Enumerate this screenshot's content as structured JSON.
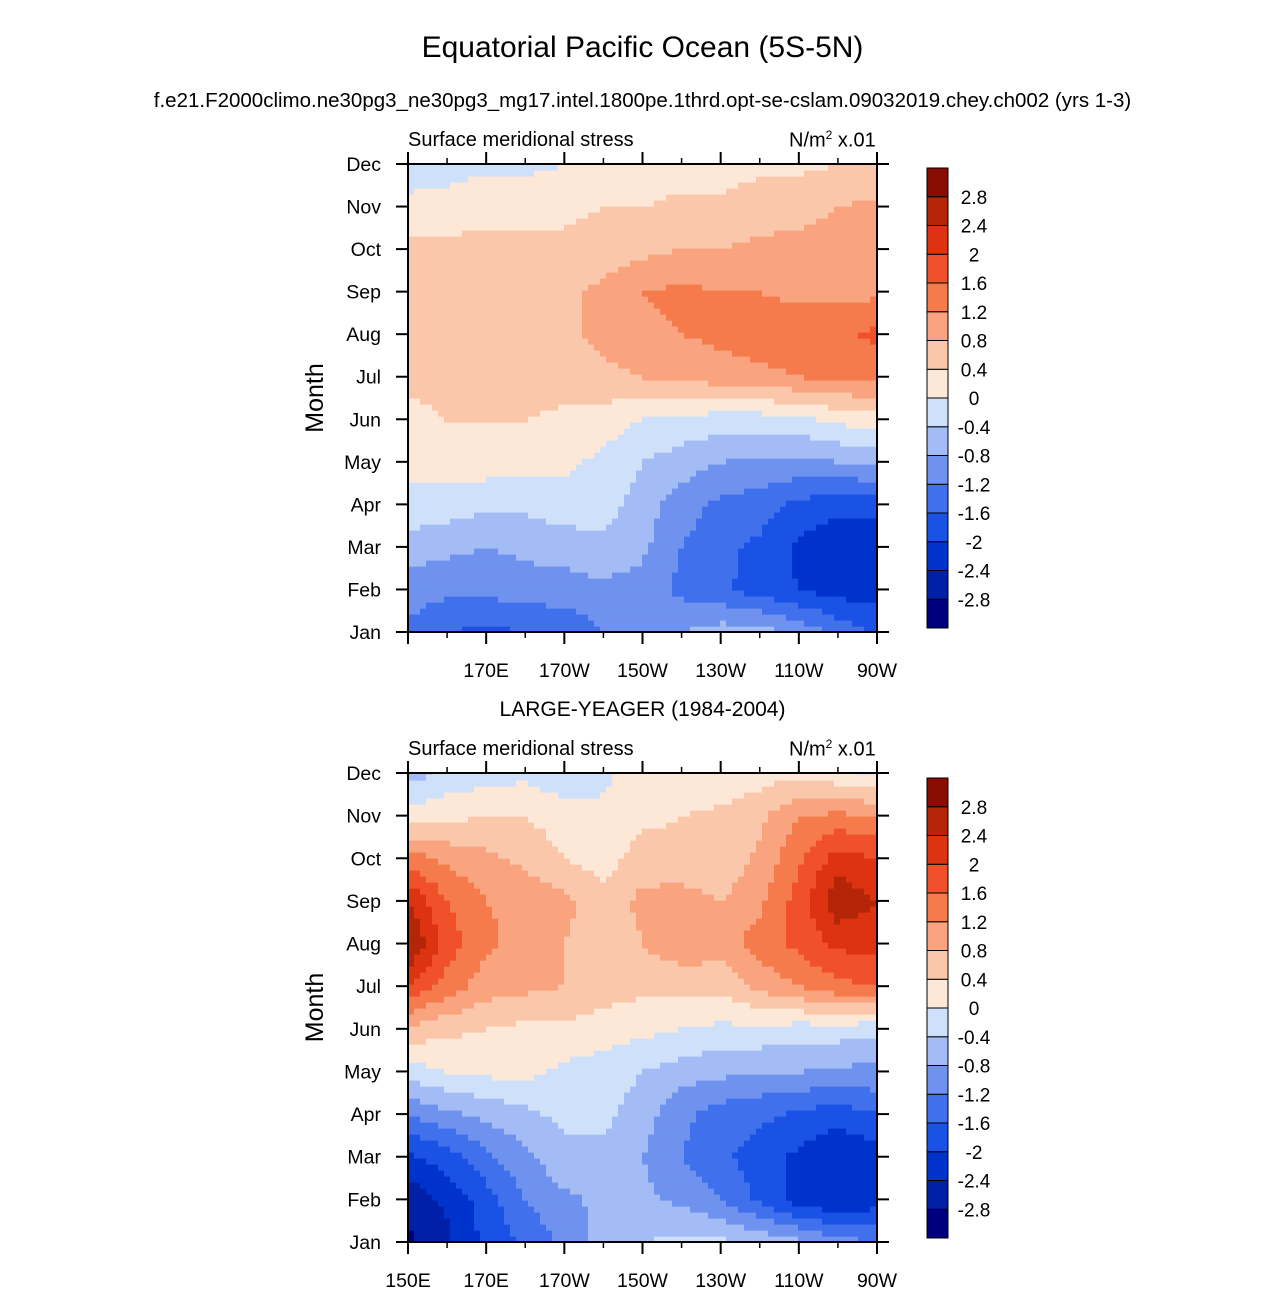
{
  "title": "Equatorial Pacific Ocean (5S-5N)",
  "subtitle": "f.e21.F2000climo.ne30pg3_ne30pg3_mg17.intel.1800pe.1thrd.opt-se-cslam.09032019.chey.ch002 (yrs 1-3)",
  "between_title": "LARGE-YEAGER (1984-2004)",
  "colors": [
    "#00007f",
    "#0020a8",
    "#0033cc",
    "#1a52e6",
    "#4070ec",
    "#6f92ef",
    "#a3bcf5",
    "#cfe0fb",
    "#fde8d8",
    "#fbc7ab",
    "#f9a47f",
    "#f57a4c",
    "#f0502a",
    "#dd3311",
    "#b52508",
    "#8a0d04"
  ],
  "chart_data": [
    {
      "type": "heatmap",
      "panel": "model",
      "left_label": "Surface meridional stress",
      "units_prefix": "N/m",
      "units_sup": "2",
      "units_suffix": " x.01",
      "ylabel": "Month",
      "y_ticks": [
        "Jan",
        "Feb",
        "Mar",
        "Apr",
        "May",
        "Jun",
        "Jul",
        "Aug",
        "Sep",
        "Oct",
        "Nov",
        "Dec"
      ],
      "x_ticks": [
        "",
        "170E",
        "170W",
        "150W",
        "130W",
        "110W",
        "90W"
      ],
      "x_range": [
        "150E",
        "90W"
      ],
      "colorbar_labels": [
        "2.8",
        "2.4",
        "2",
        "1.6",
        "1.2",
        "0.8",
        "0.4",
        "0",
        "-0.4",
        "-0.8",
        "-1.2",
        "-1.6",
        "-2",
        "-2.4",
        "-2.8"
      ],
      "months": [
        1,
        2,
        3,
        4,
        5,
        6,
        7,
        8,
        9,
        10,
        11,
        12
      ],
      "lon": [
        150,
        160,
        170,
        180,
        190,
        200,
        210,
        220,
        230,
        240,
        250,
        260,
        270
      ],
      "z": [
        [
          -1.3,
          -1.6,
          -1.7,
          -1.6,
          -1.5,
          -1.2,
          -1.0,
          -0.8,
          -0.6,
          -0.6,
          -0.9,
          -1.3,
          -1.7
        ],
        [
          -1.0,
          -1.1,
          -1.1,
          -1.0,
          -1.0,
          -0.9,
          -1.0,
          -1.3,
          -1.5,
          -1.8,
          -2.0,
          -2.2,
          -2.1
        ],
        [
          -0.6,
          -0.7,
          -0.8,
          -0.7,
          -0.6,
          -0.5,
          -0.7,
          -1.2,
          -1.5,
          -1.7,
          -2.1,
          -2.3,
          -2.3
        ],
        [
          -0.1,
          -0.2,
          -0.3,
          -0.3,
          -0.2,
          -0.2,
          -0.6,
          -1.0,
          -1.3,
          -1.4,
          -1.7,
          -1.9,
          -1.8
        ],
        [
          0.1,
          0.2,
          0.2,
          0.2,
          0.1,
          -0.1,
          -0.4,
          -0.6,
          -0.8,
          -0.9,
          -0.9,
          -0.8,
          -0.7
        ],
        [
          0.3,
          0.4,
          0.4,
          0.4,
          0.3,
          0.2,
          0.0,
          -0.1,
          -0.2,
          -0.2,
          -0.1,
          0.1,
          0.2
        ],
        [
          0.5,
          0.5,
          0.5,
          0.6,
          0.6,
          0.7,
          0.8,
          0.9,
          1.0,
          1.1,
          1.2,
          1.3,
          1.3
        ],
        [
          0.6,
          0.6,
          0.6,
          0.6,
          0.7,
          0.9,
          1.1,
          1.2,
          1.3,
          1.4,
          1.5,
          1.5,
          1.7
        ],
        [
          0.6,
          0.6,
          0.6,
          0.6,
          0.7,
          0.9,
          1.2,
          1.3,
          1.2,
          1.2,
          1.1,
          1.1,
          1.1
        ],
        [
          0.5,
          0.5,
          0.5,
          0.5,
          0.5,
          0.6,
          0.7,
          0.8,
          0.8,
          0.9,
          0.9,
          0.9,
          1.0
        ],
        [
          0.1,
          0.2,
          0.3,
          0.3,
          0.3,
          0.4,
          0.4,
          0.5,
          0.5,
          0.6,
          0.7,
          0.8,
          0.9
        ],
        [
          -0.2,
          -0.2,
          -0.1,
          -0.1,
          0.0,
          0.1,
          0.1,
          0.2,
          0.2,
          0.3,
          0.3,
          0.4,
          0.4
        ]
      ]
    },
    {
      "type": "heatmap",
      "panel": "obs",
      "left_label": "Surface meridional stress",
      "units_prefix": "N/m",
      "units_sup": "2",
      "units_suffix": " x.01",
      "ylabel": "Month",
      "y_ticks": [
        "Jan",
        "Feb",
        "Mar",
        "Apr",
        "May",
        "Jun",
        "Jul",
        "Aug",
        "Sep",
        "Oct",
        "Nov",
        "Dec"
      ],
      "x_ticks": [
        "150E",
        "170E",
        "170W",
        "150W",
        "130W",
        "110W",
        "90W"
      ],
      "x_range": [
        "150E",
        "90W"
      ],
      "colorbar_labels": [
        "2.8",
        "2.4",
        "2",
        "1.6",
        "1.2",
        "0.8",
        "0.4",
        "0",
        "-0.4",
        "-0.8",
        "-1.2",
        "-1.6",
        "-2",
        "-2.4",
        "-2.8"
      ],
      "months": [
        1,
        2,
        3,
        4,
        5,
        6,
        7,
        8,
        9,
        10,
        11,
        12
      ],
      "lon": [
        150,
        160,
        170,
        180,
        190,
        200,
        210,
        220,
        230,
        240,
        250,
        260,
        270
      ],
      "z": [
        [
          -2.9,
          -2.5,
          -1.9,
          -1.5,
          -1.1,
          -0.6,
          -0.4,
          -0.3,
          -0.3,
          -0.5,
          -0.7,
          -1.0,
          -1.2
        ],
        [
          -2.7,
          -2.3,
          -1.8,
          -1.2,
          -0.9,
          -0.7,
          -0.7,
          -0.9,
          -1.2,
          -1.7,
          -2.2,
          -2.4,
          -2.2
        ],
        [
          -2.1,
          -1.8,
          -1.3,
          -0.9,
          -0.5,
          -0.5,
          -0.8,
          -1.2,
          -1.5,
          -1.8,
          -2.1,
          -2.4,
          -2.2
        ],
        [
          -1.2,
          -0.9,
          -0.7,
          -0.5,
          -0.3,
          -0.3,
          -0.6,
          -1.1,
          -1.4,
          -1.5,
          -1.7,
          -1.8,
          -1.6
        ],
        [
          -0.2,
          0.0,
          0.1,
          0.1,
          -0.1,
          -0.2,
          -0.4,
          -0.6,
          -0.7,
          -0.8,
          -0.8,
          -0.9,
          -0.9
        ],
        [
          0.7,
          0.5,
          0.4,
          0.3,
          0.3,
          0.2,
          0.1,
          0.0,
          -0.1,
          -0.1,
          -0.2,
          -0.2,
          -0.3
        ],
        [
          2.0,
          1.4,
          1.0,
          0.9,
          0.8,
          0.6,
          0.5,
          0.5,
          0.5,
          0.9,
          1.2,
          1.5,
          1.6
        ],
        [
          2.9,
          1.8,
          1.3,
          1.0,
          0.8,
          0.5,
          0.8,
          1.1,
          1.0,
          1.4,
          1.7,
          2.1,
          2.1
        ],
        [
          2.4,
          1.6,
          1.2,
          1.1,
          0.9,
          0.6,
          0.9,
          1.0,
          0.8,
          1.1,
          1.8,
          2.7,
          2.4
        ],
        [
          1.4,
          1.1,
          0.9,
          0.7,
          0.4,
          0.2,
          0.6,
          0.5,
          0.5,
          0.9,
          1.5,
          2.2,
          2.0
        ],
        [
          0.2,
          0.3,
          0.4,
          0.4,
          0.2,
          0.1,
          0.3,
          0.4,
          0.5,
          0.7,
          1.2,
          1.3,
          1.2
        ],
        [
          -0.6,
          -0.3,
          -0.2,
          -0.1,
          -0.3,
          -0.1,
          0.2,
          0.1,
          0.1,
          0.2,
          0.3,
          0.1,
          -0.1
        ]
      ]
    }
  ]
}
